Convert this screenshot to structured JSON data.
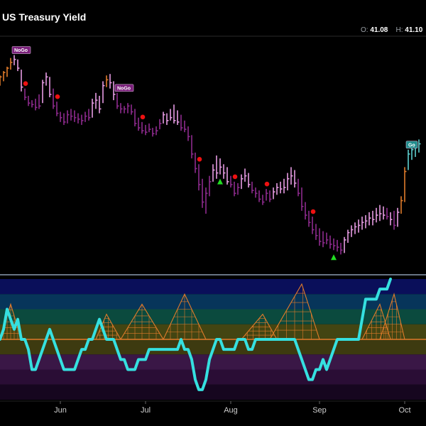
{
  "header": {
    "title": "US Treasury Yield",
    "open_label": "O:",
    "open_value": "41.08",
    "high_label": "H:",
    "high_value": "41.10"
  },
  "colors": {
    "background": "#000000",
    "bar_purple": "#8e2a8e",
    "bar_pink": "#e79be3",
    "bar_orange": "#e07b2a",
    "bar_teal": "#5ed1d1",
    "osc_line": "#35e0e0",
    "zero_line": "#e07b2a",
    "go_triangle": "#22dd22",
    "nogo_dot": "#ee1111",
    "divider": "#8a9ab0"
  },
  "chart_data": [
    {
      "type": "ohlc",
      "title": "US Treasury Yield",
      "x_tick_labels": [
        "Jun",
        "Jul",
        "Aug",
        "Sep",
        "Oct"
      ],
      "x_tick_bars": [
        17,
        41,
        65,
        90,
        114
      ],
      "bars": [
        {
          "h": 30.25,
          "l": 29.9,
          "c": 30.2,
          "state": "orange"
        },
        {
          "h": 30.4,
          "l": 30.05,
          "c": 30.35,
          "state": "orange"
        },
        {
          "h": 30.55,
          "l": 30.2,
          "c": 30.5,
          "state": "orange"
        },
        {
          "h": 30.85,
          "l": 30.45,
          "c": 30.7,
          "state": "orange"
        },
        {
          "h": 30.95,
          "l": 30.6,
          "c": 30.8,
          "state": "pink"
        },
        {
          "h": 30.8,
          "l": 30.4,
          "c": 30.5,
          "state": "pink"
        },
        {
          "h": 30.45,
          "l": 29.7,
          "c": 29.85,
          "state": "pink"
        },
        {
          "h": 29.8,
          "l": 29.4,
          "c": 29.5,
          "state": "purple"
        },
        {
          "h": 29.55,
          "l": 29.2,
          "c": 29.3,
          "state": "purple"
        },
        {
          "h": 29.4,
          "l": 29.15,
          "c": 29.25,
          "state": "purple"
        },
        {
          "h": 29.45,
          "l": 29.05,
          "c": 29.15,
          "state": "purple"
        },
        {
          "h": 29.6,
          "l": 29.1,
          "c": 29.2,
          "state": "purple"
        },
        {
          "h": 30.1,
          "l": 29.3,
          "c": 30.0,
          "state": "pink"
        },
        {
          "h": 30.35,
          "l": 29.9,
          "c": 30.2,
          "state": "pink"
        },
        {
          "h": 30.2,
          "l": 29.5,
          "c": 29.6,
          "state": "pink"
        },
        {
          "h": 29.8,
          "l": 29.1,
          "c": 29.2,
          "state": "purple"
        },
        {
          "h": 29.35,
          "l": 28.85,
          "c": 28.95,
          "state": "purple"
        },
        {
          "h": 29.0,
          "l": 28.65,
          "c": 28.8,
          "state": "purple"
        },
        {
          "h": 28.95,
          "l": 28.55,
          "c": 28.65,
          "state": "purple"
        },
        {
          "h": 29.05,
          "l": 28.6,
          "c": 28.9,
          "state": "purple"
        },
        {
          "h": 29.1,
          "l": 28.7,
          "c": 28.85,
          "state": "purple"
        },
        {
          "h": 29.05,
          "l": 28.65,
          "c": 28.8,
          "state": "purple"
        },
        {
          "h": 28.95,
          "l": 28.6,
          "c": 28.75,
          "state": "purple"
        },
        {
          "h": 28.9,
          "l": 28.55,
          "c": 28.7,
          "state": "purple"
        },
        {
          "h": 29.0,
          "l": 28.65,
          "c": 28.85,
          "state": "purple"
        },
        {
          "h": 29.1,
          "l": 28.7,
          "c": 28.8,
          "state": "purple"
        },
        {
          "h": 29.45,
          "l": 28.8,
          "c": 29.3,
          "state": "pink"
        },
        {
          "h": 29.65,
          "l": 29.1,
          "c": 29.4,
          "state": "pink"
        },
        {
          "h": 29.55,
          "l": 28.95,
          "c": 29.1,
          "state": "pink"
        },
        {
          "h": 30.05,
          "l": 29.3,
          "c": 29.9,
          "state": "pink"
        },
        {
          "h": 30.25,
          "l": 29.85,
          "c": 30.1,
          "state": "orange"
        },
        {
          "h": 30.3,
          "l": 29.8,
          "c": 30.0,
          "state": "pink"
        },
        {
          "h": 30.05,
          "l": 29.4,
          "c": 29.6,
          "state": "pink"
        },
        {
          "h": 29.65,
          "l": 29.1,
          "c": 29.2,
          "state": "purple"
        },
        {
          "h": 29.3,
          "l": 28.95,
          "c": 29.1,
          "state": "purple"
        },
        {
          "h": 29.2,
          "l": 28.95,
          "c": 29.1,
          "state": "purple"
        },
        {
          "h": 29.3,
          "l": 28.95,
          "c": 29.2,
          "state": "purple"
        },
        {
          "h": 29.25,
          "l": 28.9,
          "c": 29.0,
          "state": "purple"
        },
        {
          "h": 29.1,
          "l": 28.5,
          "c": 28.6,
          "state": "purple"
        },
        {
          "h": 28.8,
          "l": 28.35,
          "c": 28.45,
          "state": "purple"
        },
        {
          "h": 28.65,
          "l": 28.25,
          "c": 28.35,
          "state": "purple"
        },
        {
          "h": 28.55,
          "l": 28.2,
          "c": 28.3,
          "state": "purple"
        },
        {
          "h": 28.6,
          "l": 28.3,
          "c": 28.4,
          "state": "purple"
        },
        {
          "h": 28.45,
          "l": 28.15,
          "c": 28.25,
          "state": "purple"
        },
        {
          "h": 28.5,
          "l": 28.2,
          "c": 28.35,
          "state": "purple"
        },
        {
          "h": 28.75,
          "l": 28.4,
          "c": 28.6,
          "state": "purple"
        },
        {
          "h": 29.0,
          "l": 28.6,
          "c": 28.9,
          "state": "pink"
        },
        {
          "h": 28.95,
          "l": 28.55,
          "c": 28.7,
          "state": "pink"
        },
        {
          "h": 29.1,
          "l": 28.7,
          "c": 28.8,
          "state": "pink"
        },
        {
          "h": 29.25,
          "l": 28.6,
          "c": 28.7,
          "state": "pink"
        },
        {
          "h": 29.05,
          "l": 28.55,
          "c": 28.65,
          "state": "pink"
        },
        {
          "h": 28.9,
          "l": 28.35,
          "c": 28.45,
          "state": "purple"
        },
        {
          "h": 28.7,
          "l": 28.3,
          "c": 28.4,
          "state": "purple"
        },
        {
          "h": 28.5,
          "l": 28.0,
          "c": 28.15,
          "state": "purple"
        },
        {
          "h": 28.2,
          "l": 27.4,
          "c": 27.55,
          "state": "purple"
        },
        {
          "h": 27.6,
          "l": 26.9,
          "c": 27.05,
          "state": "purple"
        },
        {
          "h": 27.2,
          "l": 26.3,
          "c": 26.5,
          "state": "purple"
        },
        {
          "h": 26.7,
          "l": 25.7,
          "c": 25.9,
          "state": "purple"
        },
        {
          "h": 26.4,
          "l": 25.5,
          "c": 26.2,
          "state": "purple"
        },
        {
          "h": 26.8,
          "l": 26.1,
          "c": 26.6,
          "state": "purple"
        },
        {
          "h": 27.2,
          "l": 26.6,
          "c": 27.0,
          "state": "pink"
        },
        {
          "h": 27.5,
          "l": 26.7,
          "c": 26.9,
          "state": "pink"
        },
        {
          "h": 27.4,
          "l": 26.85,
          "c": 27.1,
          "state": "pink"
        },
        {
          "h": 27.2,
          "l": 26.7,
          "c": 26.9,
          "state": "pink"
        },
        {
          "h": 27.1,
          "l": 26.5,
          "c": 26.6,
          "state": "pink"
        },
        {
          "h": 26.8,
          "l": 26.4,
          "c": 26.5,
          "state": "purple"
        },
        {
          "h": 26.6,
          "l": 26.1,
          "c": 26.2,
          "state": "purple"
        },
        {
          "h": 26.55,
          "l": 26.15,
          "c": 26.4,
          "state": "purple"
        },
        {
          "h": 26.85,
          "l": 26.35,
          "c": 26.7,
          "state": "pink"
        },
        {
          "h": 27.05,
          "l": 26.6,
          "c": 26.8,
          "state": "pink"
        },
        {
          "h": 26.9,
          "l": 26.4,
          "c": 26.5,
          "state": "pink"
        },
        {
          "h": 26.6,
          "l": 26.2,
          "c": 26.3,
          "state": "purple"
        },
        {
          "h": 26.4,
          "l": 26.05,
          "c": 26.2,
          "state": "purple"
        },
        {
          "h": 26.3,
          "l": 25.9,
          "c": 26.0,
          "state": "purple"
        },
        {
          "h": 26.15,
          "l": 25.8,
          "c": 25.9,
          "state": "purple"
        },
        {
          "h": 26.35,
          "l": 25.95,
          "c": 26.2,
          "state": "purple"
        },
        {
          "h": 26.3,
          "l": 25.9,
          "c": 26.0,
          "state": "purple"
        },
        {
          "h": 26.4,
          "l": 26.0,
          "c": 26.25,
          "state": "pink"
        },
        {
          "h": 26.55,
          "l": 26.15,
          "c": 26.4,
          "state": "pink"
        },
        {
          "h": 26.6,
          "l": 26.2,
          "c": 26.35,
          "state": "pink"
        },
        {
          "h": 26.7,
          "l": 26.2,
          "c": 26.4,
          "state": "pink"
        },
        {
          "h": 26.9,
          "l": 26.3,
          "c": 26.7,
          "state": "pink"
        },
        {
          "h": 27.1,
          "l": 26.5,
          "c": 26.8,
          "state": "pink"
        },
        {
          "h": 27.0,
          "l": 26.4,
          "c": 26.55,
          "state": "pink"
        },
        {
          "h": 26.7,
          "l": 26.1,
          "c": 26.2,
          "state": "purple"
        },
        {
          "h": 26.4,
          "l": 25.6,
          "c": 25.75,
          "state": "purple"
        },
        {
          "h": 25.9,
          "l": 25.3,
          "c": 25.45,
          "state": "purple"
        },
        {
          "h": 25.6,
          "l": 25.05,
          "c": 25.2,
          "state": "purple"
        },
        {
          "h": 25.4,
          "l": 24.8,
          "c": 24.95,
          "state": "purple"
        },
        {
          "h": 25.15,
          "l": 24.6,
          "c": 24.75,
          "state": "purple"
        },
        {
          "h": 25.0,
          "l": 24.4,
          "c": 24.55,
          "state": "purple"
        },
        {
          "h": 24.9,
          "l": 24.35,
          "c": 24.5,
          "state": "purple"
        },
        {
          "h": 24.85,
          "l": 24.45,
          "c": 24.6,
          "state": "purple"
        },
        {
          "h": 24.75,
          "l": 24.3,
          "c": 24.45,
          "state": "purple"
        },
        {
          "h": 24.65,
          "l": 24.25,
          "c": 24.4,
          "state": "purple"
        },
        {
          "h": 24.6,
          "l": 24.2,
          "c": 24.35,
          "state": "purple"
        },
        {
          "h": 24.5,
          "l": 24.1,
          "c": 24.25,
          "state": "purple"
        },
        {
          "h": 24.7,
          "l": 24.15,
          "c": 24.6,
          "state": "pink"
        },
        {
          "h": 24.95,
          "l": 24.5,
          "c": 24.85,
          "state": "pink"
        },
        {
          "h": 25.1,
          "l": 24.7,
          "c": 24.95,
          "state": "pink"
        },
        {
          "h": 25.2,
          "l": 24.8,
          "c": 25.05,
          "state": "pink"
        },
        {
          "h": 25.3,
          "l": 24.85,
          "c": 25.1,
          "state": "pink"
        },
        {
          "h": 25.4,
          "l": 24.95,
          "c": 25.2,
          "state": "pink"
        },
        {
          "h": 25.45,
          "l": 25.0,
          "c": 25.25,
          "state": "pink"
        },
        {
          "h": 25.55,
          "l": 25.1,
          "c": 25.35,
          "state": "pink"
        },
        {
          "h": 25.6,
          "l": 25.1,
          "c": 25.3,
          "state": "pink"
        },
        {
          "h": 25.7,
          "l": 25.2,
          "c": 25.45,
          "state": "pink"
        },
        {
          "h": 25.8,
          "l": 25.25,
          "c": 25.5,
          "state": "pink"
        },
        {
          "h": 25.75,
          "l": 25.3,
          "c": 25.45,
          "state": "pink"
        },
        {
          "h": 25.7,
          "l": 25.3,
          "c": 25.4,
          "state": "purple"
        },
        {
          "h": 25.55,
          "l": 25.1,
          "c": 25.3,
          "state": "pink"
        },
        {
          "h": 25.6,
          "l": 24.95,
          "c": 25.1,
          "state": "purple"
        },
        {
          "h": 25.7,
          "l": 25.05,
          "c": 25.55,
          "state": "pink"
        },
        {
          "h": 26.1,
          "l": 25.5,
          "c": 25.95,
          "state": "orange"
        },
        {
          "h": 27.1,
          "l": 25.9,
          "c": 26.95,
          "state": "orange"
        },
        {
          "h": 27.7,
          "l": 27.0,
          "c": 27.55,
          "state": "teal"
        },
        {
          "h": 27.85,
          "l": 27.35,
          "c": 27.7,
          "state": "teal"
        },
        {
          "h": 27.95,
          "l": 27.45,
          "c": 27.8,
          "state": "teal"
        },
        {
          "h": 28.05,
          "l": 27.6,
          "c": 27.9,
          "state": "teal"
        }
      ],
      "tags": [
        {
          "bar": 4,
          "text": "NoGo",
          "type": "nogo"
        },
        {
          "bar": 33,
          "text": "NoGo",
          "type": "nogo"
        },
        {
          "bar": 115,
          "text": "Go",
          "type": "go"
        }
      ],
      "nogo_dots": [
        7,
        16,
        40,
        56,
        66,
        75,
        88
      ],
      "go_triangles": [
        62,
        94
      ]
    },
    {
      "type": "line",
      "title": "",
      "ylim": [
        -6,
        6
      ],
      "zero": 0,
      "oscillator": [
        0,
        1,
        3,
        2,
        1,
        2,
        0,
        0,
        -1,
        -3,
        -3,
        -2,
        -1,
        0,
        1,
        0,
        -1,
        -2,
        -3,
        -3,
        -3,
        -3,
        -2,
        -1,
        -1,
        0,
        0,
        1,
        2,
        1,
        0,
        0,
        0,
        -1,
        -2,
        -2,
        -3,
        -3,
        -3,
        -2,
        -2,
        -2,
        -1,
        -1,
        -1,
        -1,
        -1,
        -1,
        -1,
        -1,
        -1,
        0,
        -1,
        -1,
        -2,
        -4,
        -5,
        -5,
        -4,
        -2,
        -1,
        0,
        0,
        -1,
        -1,
        -1,
        -1,
        0,
        0,
        0,
        -1,
        -1,
        0,
        0,
        0,
        0,
        0,
        0,
        0,
        0,
        0,
        0,
        0,
        0,
        -1,
        -2,
        -3,
        -4,
        -4,
        -3,
        -3,
        -2,
        -3,
        -2,
        -1,
        0,
        0,
        0,
        0,
        0,
        0,
        0,
        2,
        4,
        4,
        4,
        4,
        5,
        5,
        5,
        6
      ],
      "waves": [
        {
          "start": 0,
          "peak": 3,
          "end": 6,
          "level": 3
        },
        {
          "start": 27,
          "peak": 30,
          "end": 34,
          "level": 2
        },
        {
          "start": 34,
          "peak": 40,
          "end": 46,
          "level": 3
        },
        {
          "start": 46,
          "peak": 52,
          "end": 58,
          "level": 4
        },
        {
          "start": 68,
          "peak": 74,
          "end": 78,
          "level": 2
        },
        {
          "start": 76,
          "peak": 85,
          "end": 90,
          "level": 5
        },
        {
          "start": 102,
          "peak": 107,
          "end": 110,
          "level": 3
        },
        {
          "start": 107,
          "peak": 111,
          "end": 114,
          "level": 4
        }
      ],
      "bands": [
        {
          "from": 4.5,
          "to": 6,
          "color": "#0a0f5a"
        },
        {
          "from": 3,
          "to": 4.5,
          "color": "#07355a"
        },
        {
          "from": 1.5,
          "to": 3,
          "color": "#0b4a3e"
        },
        {
          "from": 0,
          "to": 1.5,
          "color": "#434512"
        },
        {
          "from": -1.5,
          "to": 0,
          "color": "#3d3a10"
        },
        {
          "from": -3,
          "to": -1.5,
          "color": "#3a1746"
        },
        {
          "from": -4.5,
          "to": -3,
          "color": "#2a0d35"
        },
        {
          "from": -6,
          "to": -4.5,
          "color": "#16061f"
        }
      ]
    }
  ]
}
